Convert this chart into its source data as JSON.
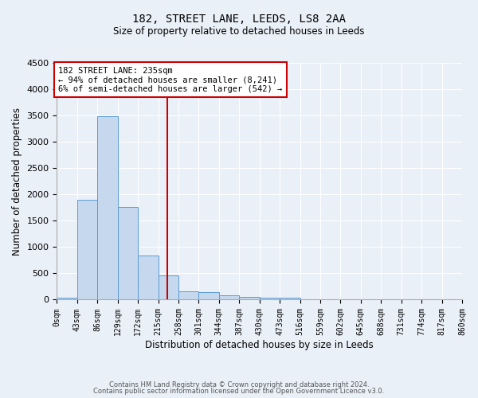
{
  "title": "182, STREET LANE, LEEDS, LS8 2AA",
  "subtitle": "Size of property relative to detached houses in Leeds",
  "xlabel": "Distribution of detached houses by size in Leeds",
  "ylabel": "Number of detached properties",
  "property_size": 235,
  "annotation_line1": "182 STREET LANE: 235sqm",
  "annotation_line2": "← 94% of detached houses are smaller (8,241)",
  "annotation_line3": "6% of semi-detached houses are larger (542) →",
  "footer_line1": "Contains HM Land Registry data © Crown copyright and database right 2024.",
  "footer_line2": "Contains public sector information licensed under the Open Government Licence v3.0.",
  "bin_edges": [
    0,
    43,
    86,
    129,
    172,
    215,
    258,
    301,
    344,
    387,
    430,
    473,
    516,
    559,
    602,
    645,
    688,
    731,
    774,
    817,
    860
  ],
  "bar_values": [
    30,
    1900,
    3480,
    1760,
    840,
    460,
    160,
    150,
    90,
    55,
    40,
    30,
    0,
    0,
    0,
    0,
    0,
    0,
    0,
    0
  ],
  "bar_color": "#c5d8ed",
  "bar_edge_color": "#5b9bd5",
  "red_line_color": "#cc0000",
  "background_color": "#eaf0f8",
  "grid_color": "#ffffff",
  "ylim": [
    0,
    4500
  ],
  "annotation_box_color": "#cc0000",
  "annotation_bg": "#ffffff"
}
